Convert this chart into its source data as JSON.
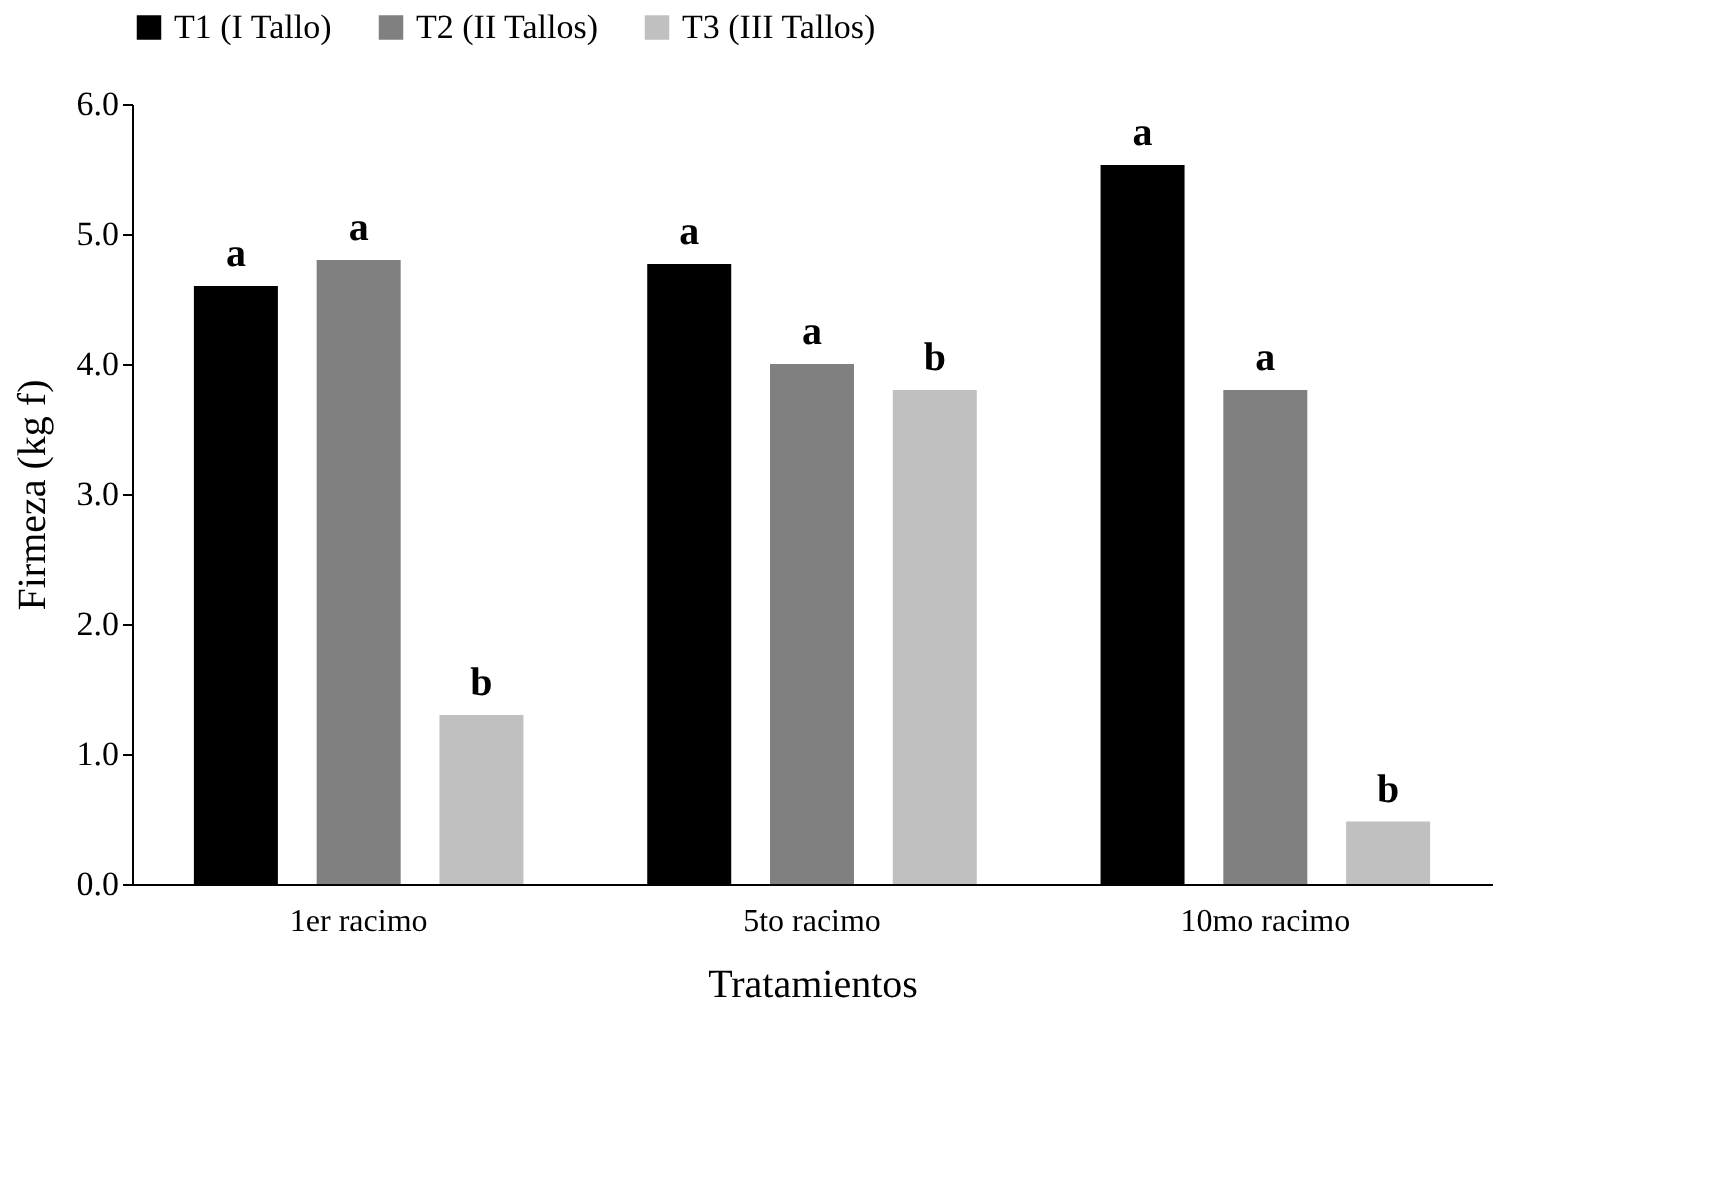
{
  "chart_data": {
    "type": "bar",
    "xlabel": "Tratamientos",
    "ylabel": "Firmeza (kg f)",
    "categories": [
      "1er racimo",
      "5to racimo",
      "10mo racimo"
    ],
    "series": [
      {
        "name": "T1 (I Tallo)",
        "color": "#000000",
        "values": [
          4.6,
          4.77,
          5.53
        ],
        "value_labels": [
          "a",
          "a",
          "a"
        ]
      },
      {
        "name": "T2 (II Tallos)",
        "color": "#808080",
        "values": [
          4.8,
          4.0,
          3.8
        ],
        "value_labels": [
          "a",
          "a",
          "a"
        ]
      },
      {
        "name": "T3 (III Tallos)",
        "color": "#c0c0c0",
        "values": [
          1.3,
          3.8,
          0.48
        ],
        "value_labels": [
          "b",
          "b",
          "b"
        ]
      }
    ],
    "ylim": [
      0,
      6
    ],
    "yticks": [
      {
        "value": 0,
        "label": "0.0"
      },
      {
        "value": 1,
        "label": "1.0"
      },
      {
        "value": 2,
        "label": "2.0"
      },
      {
        "value": 3,
        "label": "3.0"
      },
      {
        "value": 4,
        "label": "4.0"
      },
      {
        "value": 5,
        "label": "5.0"
      },
      {
        "value": 6,
        "label": "6.0"
      }
    ],
    "grid": false,
    "legend": "top"
  }
}
